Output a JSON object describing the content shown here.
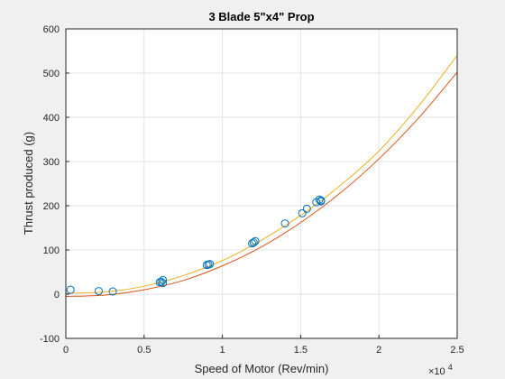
{
  "chart_data": {
    "type": "scatter",
    "title": "3 Blade 5\"x4\" Prop",
    "xlabel": "Speed of Motor (Rev/min)",
    "ylabel": "Thrust produced (g)",
    "x_multiplier_label": "×10",
    "x_multiplier_exp": "4",
    "xlim": [
      0,
      25000
    ],
    "ylim": [
      -100,
      600
    ],
    "x_ticks": [
      0,
      5000,
      10000,
      15000,
      20000,
      25000
    ],
    "x_tick_labels": [
      "0",
      "0.5",
      "1",
      "1.5",
      "2",
      "2.5"
    ],
    "y_ticks": [
      -100,
      0,
      100,
      200,
      300,
      400,
      500,
      600
    ],
    "y_tick_labels": [
      "-100",
      "0",
      "100",
      "200",
      "300",
      "400",
      "500",
      "600"
    ],
    "grid": true,
    "series": [
      {
        "kind": "markers",
        "color": "#0072bd",
        "points": [
          [
            300,
            10
          ],
          [
            2100,
            7
          ],
          [
            3000,
            6
          ],
          [
            6000,
            27
          ],
          [
            6100,
            28
          ],
          [
            6200,
            32
          ],
          [
            6200,
            25
          ],
          [
            9000,
            66
          ],
          [
            9100,
            67
          ],
          [
            9200,
            68
          ],
          [
            11900,
            115
          ],
          [
            12000,
            117
          ],
          [
            12100,
            120
          ],
          [
            14000,
            160
          ],
          [
            15100,
            183
          ],
          [
            15400,
            193
          ],
          [
            16000,
            208
          ],
          [
            16200,
            214
          ],
          [
            16300,
            210
          ],
          [
            16300,
            212
          ]
        ]
      },
      {
        "kind": "curve",
        "color": "#edb120",
        "points": [
          [
            0,
            2
          ],
          [
            2500,
            5
          ],
          [
            5000,
            18
          ],
          [
            7500,
            42
          ],
          [
            10000,
            76
          ],
          [
            12500,
            122
          ],
          [
            15000,
            178
          ],
          [
            17500,
            245
          ],
          [
            20000,
            324
          ],
          [
            22500,
            424
          ],
          [
            25000,
            540
          ]
        ]
      },
      {
        "kind": "curve",
        "color": "#d95319",
        "points": [
          [
            0,
            -5
          ],
          [
            2500,
            -2
          ],
          [
            5000,
            10
          ],
          [
            7500,
            31
          ],
          [
            10000,
            64
          ],
          [
            12500,
            107
          ],
          [
            15000,
            162
          ],
          [
            17500,
            228
          ],
          [
            20000,
            306
          ],
          [
            22500,
            397
          ],
          [
            25000,
            502
          ]
        ]
      }
    ]
  }
}
